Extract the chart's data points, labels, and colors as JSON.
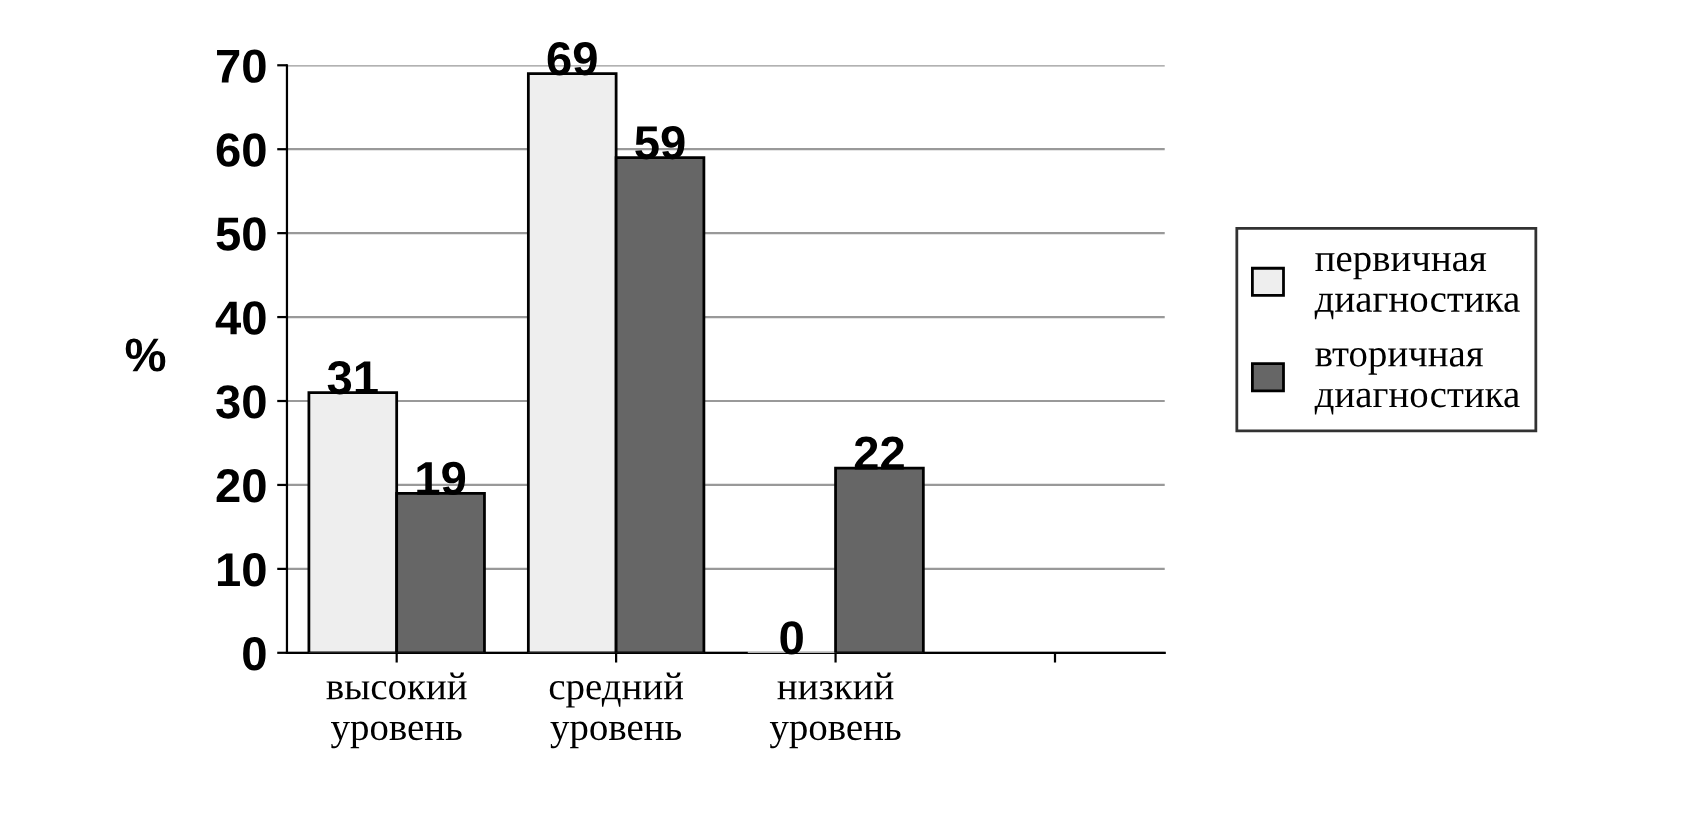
{
  "chart_data": {
    "type": "bar",
    "ylabel": "%",
    "categories": [
      "высокий\nуровень",
      "средний\nуровень",
      "низкий\nуровень",
      null
    ],
    "series": [
      {
        "name": "первичная\nдиагностика",
        "color": "#eeeeee",
        "values": [
          31,
          69,
          0,
          null
        ]
      },
      {
        "name": "вторичная\nдиагностика",
        "color": "#666666",
        "values": [
          19,
          59,
          22,
          null
        ]
      }
    ],
    "ylim": [
      0,
      70
    ],
    "yticks": [
      0,
      10,
      20,
      30,
      40,
      50,
      60,
      70
    ],
    "grid": "y",
    "legend": "right",
    "data_labels": true
  }
}
